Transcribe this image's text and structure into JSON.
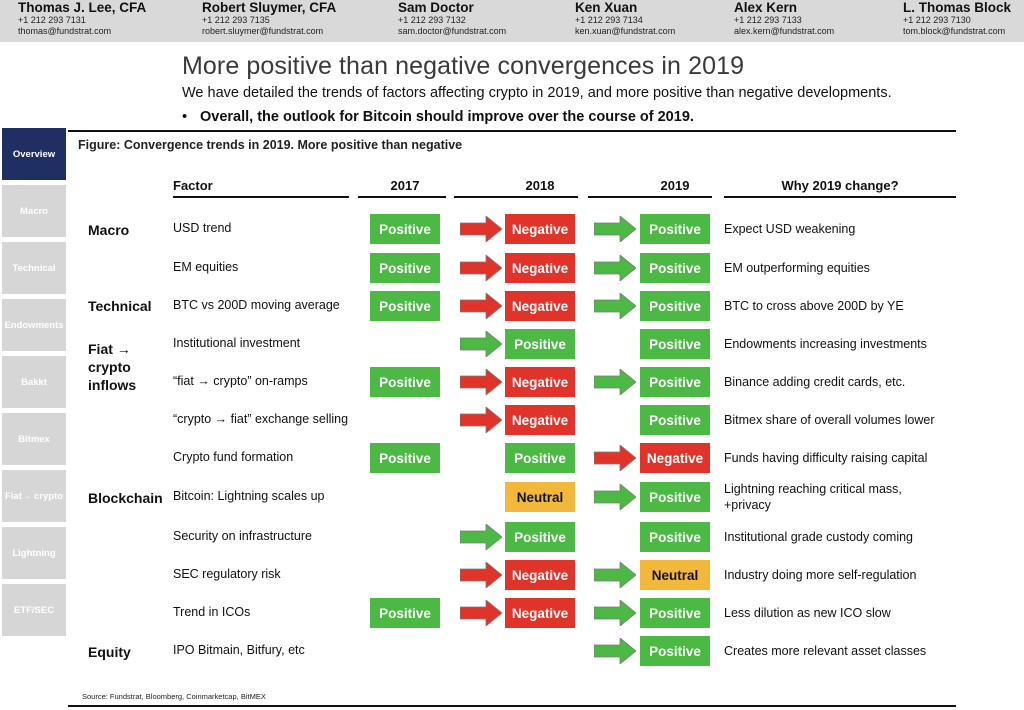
{
  "header": {
    "analysts": [
      {
        "name": "Thomas J. Lee, CFA",
        "phone": "+1 212 293 7131",
        "email": "thomas@fundstrat.com"
      },
      {
        "name": "Robert Sluymer, CFA",
        "phone": "+1 212 293 7135",
        "email": "robert.sluymer@fundstrat.com"
      },
      {
        "name": "Sam Doctor",
        "phone": "+1 212 293 7132",
        "email": "sam.doctor@fundstrat.com"
      },
      {
        "name": "Ken Xuan",
        "phone": "+1 212 293 7134",
        "email": "ken.xuan@fundstrat.com"
      },
      {
        "name": "Alex Kern",
        "phone": "+1 212 293 7133",
        "email": "alex.kern@fundstrat.com"
      },
      {
        "name": "L. Thomas Block",
        "phone": "+1 212 293 7130",
        "email": "tom.block@fundstrat.com"
      }
    ]
  },
  "title": "More positive than negative convergences in 2019",
  "subtitle": "We have detailed the trends of factors affecting crypto in 2019, and more positive than negative developments.",
  "bullet": "Overall, the outlook for Bitcoin should improve over the course of 2019.",
  "sidebar": {
    "items": [
      {
        "label": "Overview",
        "active": true
      },
      {
        "label": "Macro",
        "active": false
      },
      {
        "label": "Technical",
        "active": false
      },
      {
        "label": "Endowments",
        "active": false
      },
      {
        "label": "Bakkt",
        "active": false
      },
      {
        "label": "Bitmex",
        "active": false
      },
      {
        "label": "Fiat→ crypto",
        "active": false
      },
      {
        "label": "Lightning",
        "active": false
      },
      {
        "label": "ETF/SEC",
        "active": false
      }
    ]
  },
  "figure": {
    "caption": "Figure: Convergence trends in 2019.  More positive than negative",
    "columns": {
      "factor": "Factor",
      "y2017": "2017",
      "y2018": "2018",
      "y2019": "2019",
      "why": "Why 2019 change?"
    },
    "groups": {
      "macro": "Macro",
      "technical": "Technical",
      "fiat": "Fiat → crypto inflows",
      "blockchain": "Blockchain",
      "equity": "Equity"
    },
    "rows": [
      {
        "factor": "USD trend",
        "y2017": "Positive",
        "y2018": "Negative",
        "y2019": "Positive",
        "why": "Expect USD weakening"
      },
      {
        "factor": "EM equities",
        "y2017": "Positive",
        "y2018": "Negative",
        "y2019": "Positive",
        "why": "EM outperforming equities"
      },
      {
        "factor": "BTC vs 200D moving average",
        "y2017": "Positive",
        "y2018": "Negative",
        "y2019": "Positive",
        "why": "BTC to cross above 200D by YE"
      },
      {
        "factor": "Institutional investment",
        "y2017": "",
        "y2018": "Positive",
        "y2019": "Positive",
        "why": "Endowments increasing investments"
      },
      {
        "factor": "“fiat → crypto” on-ramps",
        "y2017": "Positive",
        "y2018": "Negative",
        "y2019": "Positive",
        "why": "Binance adding credit cards, etc."
      },
      {
        "factor": "“crypto → fiat” exchange selling",
        "y2017": "",
        "y2018": "Negative",
        "y2019": "Positive",
        "why": "Bitmex share of overall volumes lower"
      },
      {
        "factor": "Crypto fund formation",
        "y2017": "Positive",
        "y2018": "Positive",
        "y2019": "Negative",
        "why": "Funds having difficulty raising capital"
      },
      {
        "factor": "Bitcoin: Lightning scales up",
        "y2017": "",
        "y2018": "Neutral",
        "y2019": "Positive",
        "why": "Lightning reaching critical mass, +privacy"
      },
      {
        "factor": "Security on infrastructure",
        "y2017": "",
        "y2018": "Positive",
        "y2019": "Positive",
        "why": "Institutional grade custody coming"
      },
      {
        "factor": "SEC regulatory risk",
        "y2017": "",
        "y2018": "Negative",
        "y2019": "Neutral",
        "why": "Industry doing more self-regulation"
      },
      {
        "factor": "Trend in ICOs",
        "y2017": "Positive",
        "y2018": "Negative",
        "y2019": "Positive",
        "why": "Less dilution as new ICO slow"
      },
      {
        "factor": "IPO Bitmain, Bitfury, etc",
        "y2017": "",
        "y2018": "",
        "y2019": "Positive",
        "why": "Creates more relevant asset classes"
      }
    ],
    "arrows": [
      {
        "y2018": "red",
        "y2019": "green"
      },
      {
        "y2018": "red",
        "y2019": "green"
      },
      {
        "y2018": "red",
        "y2019": "green"
      },
      {
        "y2018": "green",
        "y2019": ""
      },
      {
        "y2018": "red",
        "y2019": "green"
      },
      {
        "y2018": "red",
        "y2019": ""
      },
      {
        "y2018": "",
        "y2019": "red"
      },
      {
        "y2018": "",
        "y2019": "green"
      },
      {
        "y2018": "green",
        "y2019": ""
      },
      {
        "y2018": "red",
        "y2019": "green"
      },
      {
        "y2018": "red",
        "y2019": "green"
      },
      {
        "y2018": "",
        "y2019": "green"
      }
    ],
    "colors": {
      "positive": "#4cb944",
      "negative": "#e0342a",
      "neutral": "#f2b83c",
      "arrow_green": "#4cb944",
      "arrow_red": "#e0342a"
    }
  },
  "source": "Source: Fundstrat, Bloomberg, Coinmarketcap, BitMEX"
}
